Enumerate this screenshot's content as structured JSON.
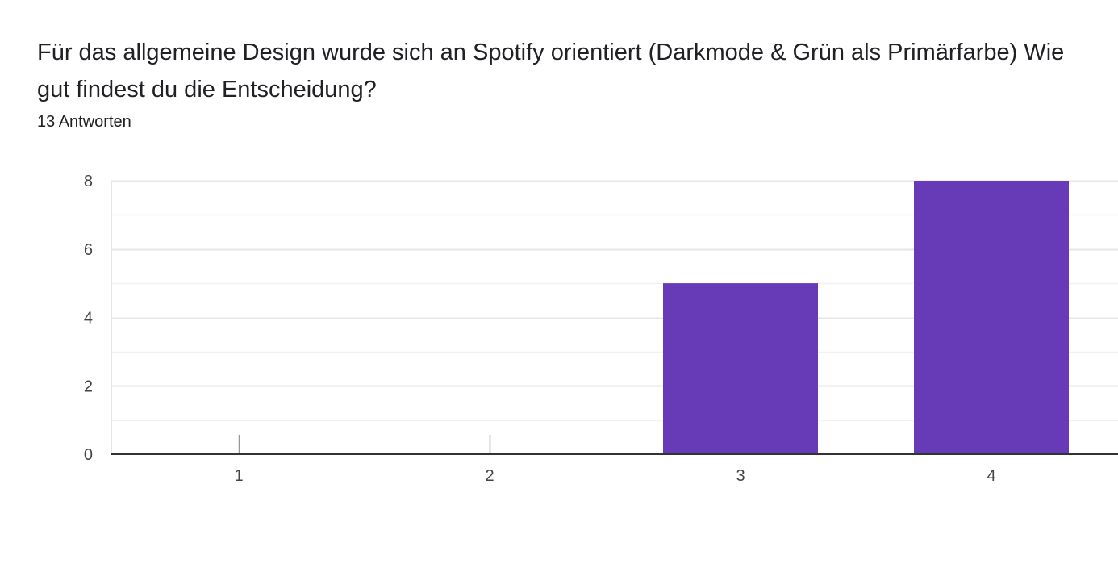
{
  "question": {
    "title": "Für das allgemeine Design wurde sich an Spotify orientiert (Darkmode & Grün als Primärfarbe) Wie gut findest du die Entscheidung?",
    "response_count": "13 Antworten"
  },
  "colors": {
    "bar": "#673ab7",
    "grid_major": "#e6e6e6",
    "grid_minor": "#f2f2f2",
    "axis": "#333333"
  },
  "chart_data": {
    "type": "bar",
    "categories": [
      "1",
      "2",
      "3",
      "4"
    ],
    "values": [
      0,
      0,
      5,
      8
    ],
    "title": "",
    "xlabel": "",
    "ylabel": "",
    "ylim": [
      0,
      8
    ],
    "yticks": [
      0,
      2,
      4,
      6,
      8
    ],
    "grid": true,
    "legend": "none"
  }
}
